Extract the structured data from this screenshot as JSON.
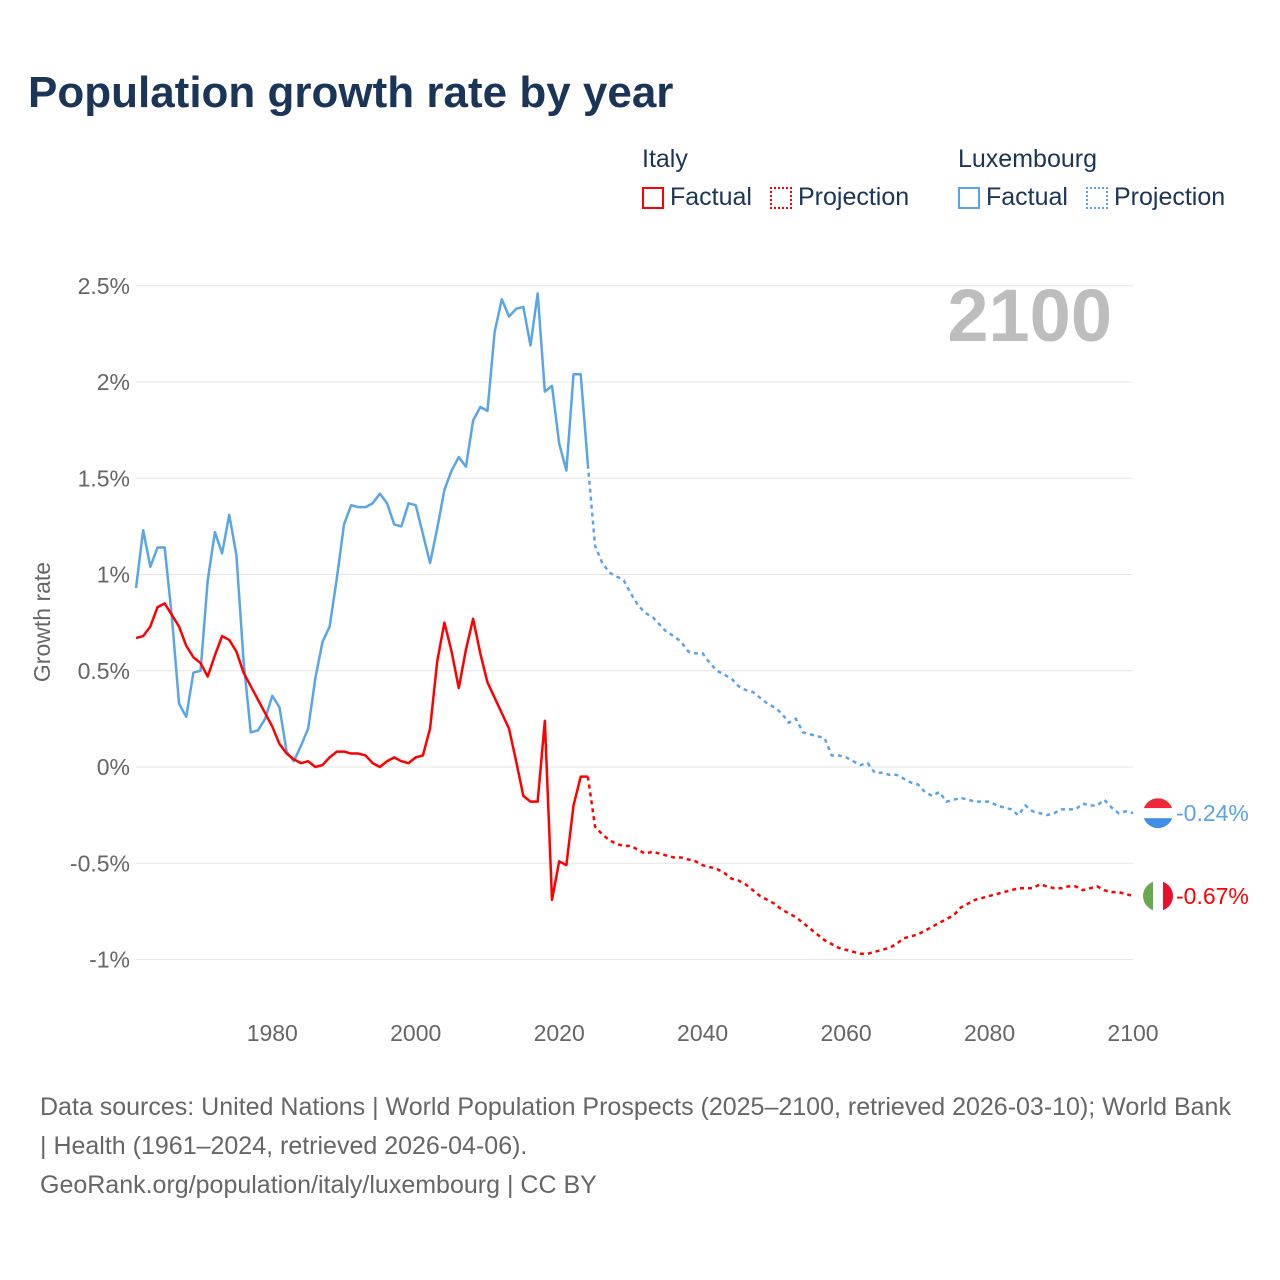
{
  "title": "Population growth rate by year",
  "legend": {
    "groups": [
      {
        "name": "Italy",
        "color": "#ff0000",
        "factual": "Factual",
        "projection": "Projection"
      },
      {
        "name": "Luxembourg",
        "color": "#5aa5e6",
        "factual": "Factual",
        "projection": "Projection"
      }
    ]
  },
  "year_label": "2100",
  "footer": {
    "sources": "Data sources: United Nations | World Population Prospects (2025–2100, retrieved 2026-03-10); World Bank | Health (1961–2024, retrieved 2026-04-06).",
    "credit": "GeoRank.org/population/italy/luxembourg | CC BY"
  },
  "chart_data": {
    "type": "line",
    "title": "Population growth rate by year",
    "xlabel": "",
    "ylabel": "Growth rate",
    "xlim": [
      1961,
      2100
    ],
    "ylim": [
      -1.1,
      2.5
    ],
    "x_ticks": [
      1980,
      2000,
      2020,
      2040,
      2060,
      2080,
      2100
    ],
    "x_tick_labels": [
      "1980",
      "2000",
      "2020",
      "2040",
      "2060",
      "2080",
      "2100"
    ],
    "y_ticks": [
      2.5,
      2,
      1.5,
      1,
      0.5,
      0,
      -0.5,
      -1
    ],
    "y_tick_labels": [
      "2.5%",
      "2%",
      "1.5%",
      "1%",
      "0.5%",
      "0%",
      "-0.5%",
      "-1%"
    ],
    "grid": true,
    "legend_position": "top-right",
    "series": [
      {
        "name": "Luxembourg",
        "color": "#5aa5e6",
        "end_label": "-0.24%",
        "factual_start": 1961,
        "factual": [
          0.93,
          1.23,
          1.04,
          1.14,
          1.14,
          0.78,
          0.33,
          0.26,
          0.49,
          0.5,
          0.97,
          1.22,
          1.11,
          1.31,
          1.1,
          0.55,
          0.18,
          0.19,
          0.25,
          0.37,
          0.31,
          0.08,
          0.03,
          0.11,
          0.2,
          0.46,
          0.65,
          0.73,
          0.98,
          1.26,
          1.36,
          1.35,
          1.35,
          1.37,
          1.42,
          1.37,
          1.26,
          1.25,
          1.37,
          1.36,
          1.21,
          1.06,
          1.24,
          1.44,
          1.54,
          1.61,
          1.56,
          1.8,
          1.87,
          1.85,
          2.26,
          2.43,
          2.34,
          2.38,
          2.39,
          2.19,
          2.46,
          1.95,
          1.98,
          1.68,
          1.54,
          2.04,
          2.04,
          1.57
        ],
        "projection_start": 2025,
        "projection": [
          1.15,
          1.06,
          1.01,
          0.99,
          0.97,
          0.9,
          0.84,
          0.8,
          0.78,
          0.74,
          0.7,
          0.68,
          0.65,
          0.6,
          0.59,
          0.59,
          0.54,
          0.5,
          0.48,
          0.46,
          0.42,
          0.4,
          0.39,
          0.36,
          0.33,
          0.31,
          0.28,
          0.23,
          0.25,
          0.18,
          0.17,
          0.16,
          0.15,
          0.06,
          0.06,
          0.05,
          0.03,
          0.01,
          0.02,
          -0.03,
          -0.03,
          -0.04,
          -0.04,
          -0.06,
          -0.08,
          -0.09,
          -0.13,
          -0.15,
          -0.13,
          -0.18,
          -0.17,
          -0.16,
          -0.17,
          -0.18,
          -0.18,
          -0.18,
          -0.2,
          -0.21,
          -0.22,
          -0.25,
          -0.2,
          -0.23,
          -0.24,
          -0.25,
          -0.24,
          -0.22,
          -0.22,
          -0.22,
          -0.19,
          -0.2,
          -0.2,
          -0.17,
          -0.21,
          -0.24,
          -0.23,
          -0.24
        ]
      },
      {
        "name": "Italy",
        "color": "#ff0000",
        "end_label": "-0.67%",
        "factual_start": 1961,
        "factual": [
          0.67,
          0.68,
          0.73,
          0.83,
          0.85,
          0.79,
          0.73,
          0.63,
          0.57,
          0.54,
          0.47,
          0.58,
          0.68,
          0.66,
          0.6,
          0.49,
          0.42,
          0.35,
          0.28,
          0.21,
          0.12,
          0.07,
          0.04,
          0.02,
          0.03,
          0.0,
          0.01,
          0.05,
          0.08,
          0.08,
          0.07,
          0.07,
          0.06,
          0.02,
          0.0,
          0.03,
          0.05,
          0.03,
          0.02,
          0.05,
          0.06,
          0.2,
          0.55,
          0.75,
          0.6,
          0.41,
          0.61,
          0.77,
          0.59,
          0.44,
          0.36,
          0.28,
          0.2,
          0.03,
          -0.15,
          -0.18,
          -0.18,
          0.24,
          -0.69,
          -0.49,
          -0.51,
          -0.2,
          -0.05,
          -0.05
        ],
        "projection_start": 2025,
        "projection": [
          -0.31,
          -0.35,
          -0.38,
          -0.4,
          -0.41,
          -0.41,
          -0.43,
          -0.45,
          -0.44,
          -0.45,
          -0.46,
          -0.47,
          -0.47,
          -0.48,
          -0.49,
          -0.51,
          -0.52,
          -0.53,
          -0.55,
          -0.58,
          -0.59,
          -0.61,
          -0.64,
          -0.67,
          -0.69,
          -0.71,
          -0.74,
          -0.76,
          -0.78,
          -0.81,
          -0.84,
          -0.87,
          -0.9,
          -0.92,
          -0.94,
          -0.95,
          -0.96,
          -0.97,
          -0.97,
          -0.96,
          -0.95,
          -0.94,
          -0.92,
          -0.89,
          -0.88,
          -0.87,
          -0.85,
          -0.83,
          -0.81,
          -0.79,
          -0.77,
          -0.73,
          -0.71,
          -0.69,
          -0.68,
          -0.67,
          -0.66,
          -0.65,
          -0.64,
          -0.63,
          -0.63,
          -0.63,
          -0.61,
          -0.62,
          -0.63,
          -0.63,
          -0.62,
          -0.62,
          -0.64,
          -0.63,
          -0.62,
          -0.64,
          -0.65,
          -0.65,
          -0.66,
          -0.67
        ]
      }
    ]
  }
}
